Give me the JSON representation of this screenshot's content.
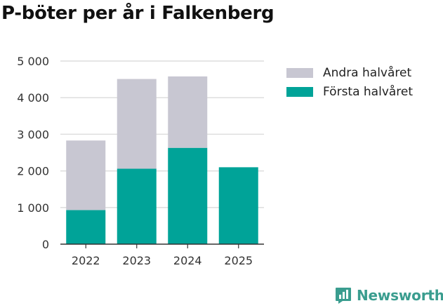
{
  "title": "P-böter per år i Falkenberg",
  "brand": {
    "label": "Newsworthy",
    "icon": "newsworthy-logo-icon",
    "color": "#3a9d8f"
  },
  "chart_data": {
    "type": "bar",
    "stacked": true,
    "categories": [
      "2022",
      "2023",
      "2024",
      "2025"
    ],
    "series": [
      {
        "name": "Första halvåret",
        "color": "#00a398",
        "values": [
          930,
          2060,
          2630,
          2100
        ]
      },
      {
        "name": "Andra halvåret",
        "color": "#c8c7d2",
        "values": [
          1900,
          2450,
          1950,
          0
        ]
      }
    ],
    "legend_order": [
      "Andra halvåret",
      "Första halvåret"
    ],
    "yticks": [
      0,
      1000,
      2000,
      3000,
      4000,
      5000
    ],
    "ytick_labels": [
      "0",
      "1 000",
      "2 000",
      "3 000",
      "4 000",
      "5 000"
    ],
    "ylim": [
      0,
      5000
    ],
    "grid": true,
    "legend_position": "top-right",
    "xlabel": "",
    "ylabel": ""
  }
}
